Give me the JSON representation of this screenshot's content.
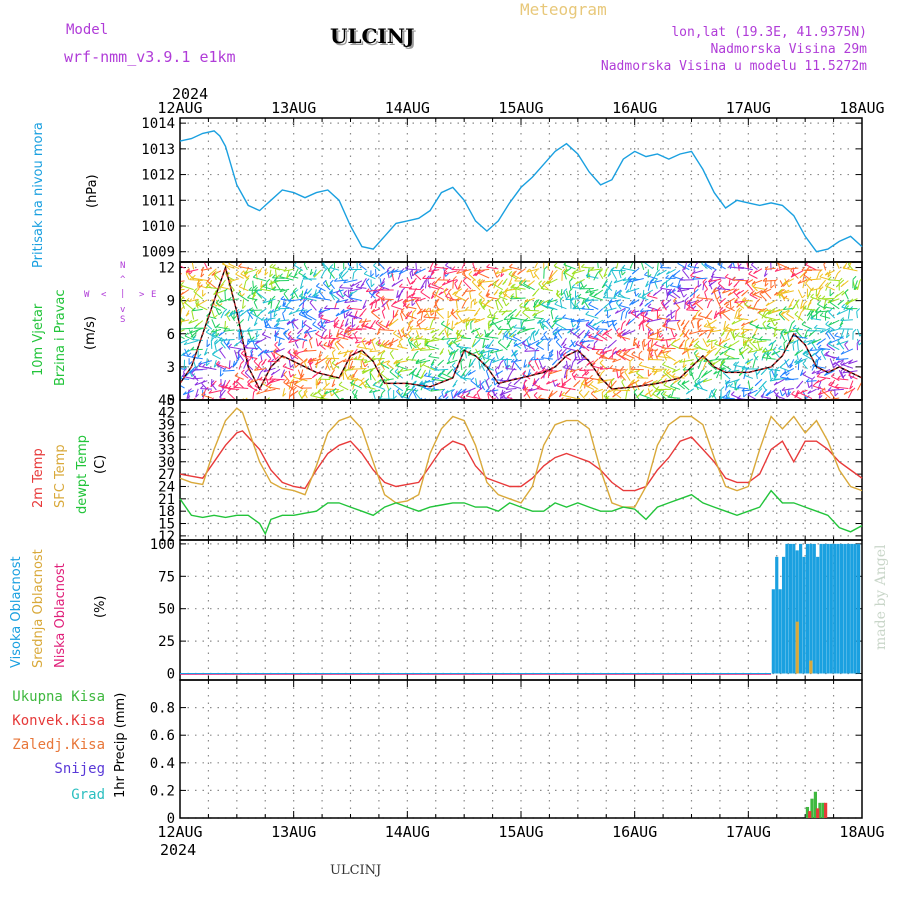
{
  "header": {
    "model_label": "Model",
    "model_name": "wrf-nmm_v3.9.1 e1km",
    "station": "ULCINJ",
    "product": "Meteogram",
    "lonlat": "lon,lat (19.3E, 41.9375N)",
    "elevation": "Nadmorska Visina 29m",
    "model_elevation": "Nadmorska Visina u modelu 11.5272m",
    "footer_station": "ULCINJ",
    "credit": "made by Angel"
  },
  "colors": {
    "pressure": "#1aa0e0",
    "temp2m": "#e83a3a",
    "sfc": "#d9a93a",
    "dewpt": "#22c43a",
    "purple": "#b03cd8",
    "total_precip": "#3fb83f",
    "conv_precip": "#e63a3a",
    "grid_precip": "#e8773a",
    "snow": "#5a3ad8",
    "hail": "#2bbfc0"
  },
  "chart_data": [
    {
      "type": "line",
      "panel": "pressure",
      "ylabel": [
        "Pritisak na nivou mora",
        "(hPa)"
      ],
      "top_year": "2024",
      "bottom_year": "2024",
      "x_ticks": [
        "12AUG",
        "13AUG",
        "14AUG",
        "15AUG",
        "16AUG",
        "17AUG",
        "18AUG"
      ],
      "xlim_days": [
        0,
        6
      ],
      "ylim": [
        1008.6,
        1014.2
      ],
      "yticks": [
        1009,
        1010,
        1011,
        1012,
        1013,
        1014
      ],
      "grid": true,
      "series": [
        {
          "x": [
            0,
            0.1,
            0.2,
            0.3,
            0.35,
            0.4,
            0.5,
            0.6,
            0.7,
            0.75,
            0.8,
            0.9,
            1.0,
            1.1,
            1.2,
            1.3,
            1.4,
            1.5,
            1.6,
            1.7,
            1.8,
            1.9,
            2.0,
            2.1,
            2.2,
            2.3,
            2.4,
            2.5,
            2.6,
            2.7,
            2.8,
            2.9,
            3.0,
            3.1,
            3.2,
            3.3,
            3.4,
            3.5,
            3.6,
            3.7,
            3.8,
            3.9,
            4.0,
            4.1,
            4.2,
            4.3,
            4.4,
            4.5,
            4.6,
            4.7,
            4.8,
            4.9,
            5.0,
            5.1,
            5.2,
            5.3,
            5.4,
            5.5,
            5.6,
            5.7,
            5.8,
            5.9,
            6.0
          ],
          "y": [
            1013.3,
            1013.4,
            1013.6,
            1013.7,
            1013.5,
            1013.1,
            1011.6,
            1010.8,
            1010.6,
            1010.8,
            1011.0,
            1011.4,
            1011.3,
            1011.1,
            1011.3,
            1011.4,
            1011.0,
            1010.0,
            1009.2,
            1009.1,
            1009.6,
            1010.1,
            1010.2,
            1010.3,
            1010.6,
            1011.3,
            1011.5,
            1011.0,
            1010.2,
            1009.8,
            1010.2,
            1010.9,
            1011.5,
            1011.9,
            1012.4,
            1012.9,
            1013.2,
            1012.8,
            1012.1,
            1011.6,
            1011.8,
            1012.6,
            1012.9,
            1012.7,
            1012.8,
            1012.6,
            1012.8,
            1012.9,
            1012.2,
            1011.3,
            1010.7,
            1011.0,
            1010.9,
            1010.8,
            1010.9,
            1010.8,
            1010.4,
            1009.6,
            1009.0,
            1009.1,
            1009.4,
            1009.6,
            1009.2
          ],
          "color": "#1aa0e0"
        }
      ]
    },
    {
      "type": "line",
      "panel": "wind",
      "ylabel": [
        "10m Vjetar",
        "Brzina i Pravac",
        "(m/s)"
      ],
      "compass": [
        "N",
        "S",
        "W",
        "E",
        "|",
        "<",
        ">",
        "^",
        "v"
      ],
      "ylim": [
        0,
        12.5
      ],
      "yticks": [
        0,
        3,
        6,
        9,
        12
      ],
      "grid": true,
      "series": [
        {
          "name": "speed",
          "x": [
            0,
            0.1,
            0.2,
            0.3,
            0.4,
            0.5,
            0.6,
            0.7,
            0.8,
            0.9,
            1.0,
            1.2,
            1.4,
            1.5,
            1.6,
            1.7,
            1.8,
            2.0,
            2.2,
            2.4,
            2.5,
            2.6,
            2.7,
            2.8,
            3.0,
            3.2,
            3.3,
            3.4,
            3.5,
            3.6,
            3.7,
            3.8,
            4.0,
            4.2,
            4.4,
            4.5,
            4.6,
            4.7,
            4.8,
            5.0,
            5.2,
            5.3,
            5.4,
            5.5,
            5.6,
            5.7,
            5.8,
            6.0
          ],
          "y": [
            1.5,
            3,
            6,
            9,
            12,
            8,
            3,
            1,
            3,
            4,
            3.5,
            2.5,
            2,
            4,
            4.5,
            3.5,
            1.5,
            1.5,
            1.2,
            2,
            4.5,
            4,
            3,
            1.5,
            2,
            2.5,
            3,
            4,
            4.5,
            3.5,
            2,
            1,
            1.2,
            1.5,
            2,
            3,
            4,
            3,
            2.5,
            2.5,
            3,
            4,
            6,
            5,
            3,
            2.5,
            3,
            2
          ],
          "color": "#e83a3a"
        }
      ]
    },
    {
      "type": "line",
      "panel": "temperature",
      "ylabel": [
        "2m Temp",
        "SFC Temp",
        "dewpt Temp",
        "(C)"
      ],
      "ylim": [
        11,
        45
      ],
      "yticks": [
        12,
        15,
        18,
        21,
        24,
        27,
        30,
        33,
        36,
        39,
        42,
        45
      ],
      "grid": true,
      "series": [
        {
          "name": "2m Temp",
          "color": "#e83a3a",
          "x": [
            0,
            0.1,
            0.2,
            0.3,
            0.4,
            0.5,
            0.55,
            0.6,
            0.7,
            0.8,
            0.9,
            1.0,
            1.1,
            1.2,
            1.3,
            1.4,
            1.5,
            1.6,
            1.7,
            1.8,
            1.9,
            2.0,
            2.1,
            2.2,
            2.3,
            2.4,
            2.5,
            2.6,
            2.7,
            2.8,
            2.9,
            3.0,
            3.1,
            3.2,
            3.3,
            3.4,
            3.5,
            3.6,
            3.7,
            3.8,
            3.9,
            4.0,
            4.1,
            4.2,
            4.3,
            4.4,
            4.5,
            4.6,
            4.7,
            4.8,
            4.9,
            5.0,
            5.1,
            5.2,
            5.3,
            5.4,
            5.5,
            5.6,
            5.7,
            5.8,
            5.9,
            6.0
          ],
          "y": [
            27,
            26.5,
            26,
            30,
            34,
            37,
            37.5,
            36,
            33,
            28,
            25,
            24,
            23.5,
            28,
            32,
            34,
            35,
            32,
            28,
            25,
            24,
            24.5,
            25,
            29,
            33,
            35,
            34,
            29,
            26,
            25,
            24,
            24,
            26,
            29,
            31,
            32,
            31,
            30,
            28,
            25,
            23,
            23,
            24,
            28,
            31,
            35,
            36,
            33,
            30,
            26,
            25,
            25,
            27,
            33,
            35,
            30,
            35,
            35,
            33,
            30,
            28,
            26
          ]
        },
        {
          "name": "SFC Temp",
          "color": "#d9a93a",
          "x": [
            0,
            0.1,
            0.2,
            0.3,
            0.4,
            0.5,
            0.55,
            0.6,
            0.7,
            0.8,
            0.9,
            1.0,
            1.1,
            1.2,
            1.3,
            1.4,
            1.5,
            1.6,
            1.7,
            1.8,
            1.9,
            2.0,
            2.1,
            2.2,
            2.3,
            2.4,
            2.5,
            2.6,
            2.7,
            2.8,
            2.9,
            3.0,
            3.1,
            3.2,
            3.3,
            3.4,
            3.5,
            3.6,
            3.7,
            3.8,
            3.9,
            4.0,
            4.1,
            4.2,
            4.3,
            4.4,
            4.5,
            4.6,
            4.7,
            4.8,
            4.9,
            5.0,
            5.1,
            5.2,
            5.3,
            5.4,
            5.5,
            5.6,
            5.7,
            5.8,
            5.9,
            6.0
          ],
          "y": [
            26,
            25,
            24.5,
            33,
            40,
            43,
            42,
            38,
            30,
            25,
            23.5,
            23,
            22,
            29,
            37,
            40,
            41,
            38,
            30,
            22,
            20,
            20.5,
            22,
            32,
            38,
            41,
            40,
            34,
            25,
            22,
            21,
            20,
            24,
            34,
            39,
            40,
            40,
            38,
            28,
            20,
            19,
            19,
            24,
            34,
            39,
            41,
            41,
            39,
            31,
            24,
            23,
            24,
            33,
            41,
            38,
            41,
            37,
            40,
            35,
            28,
            24,
            23
          ]
        },
        {
          "name": "dewpt Temp",
          "color": "#22c43a",
          "x": [
            0,
            0.1,
            0.2,
            0.3,
            0.4,
            0.5,
            0.6,
            0.7,
            0.75,
            0.8,
            0.9,
            1.0,
            1.1,
            1.2,
            1.3,
            1.4,
            1.5,
            1.6,
            1.7,
            1.8,
            1.9,
            2.0,
            2.1,
            2.2,
            2.3,
            2.4,
            2.5,
            2.6,
            2.7,
            2.8,
            2.9,
            3.0,
            3.1,
            3.2,
            3.3,
            3.4,
            3.5,
            3.6,
            3.7,
            3.8,
            3.9,
            4.0,
            4.1,
            4.2,
            4.3,
            4.4,
            4.5,
            4.6,
            4.7,
            4.8,
            4.9,
            5.0,
            5.1,
            5.2,
            5.3,
            5.4,
            5.5,
            5.6,
            5.7,
            5.8,
            5.9,
            6.0
          ],
          "y": [
            21,
            17,
            16.5,
            17,
            16.5,
            17,
            17,
            15,
            12.5,
            16,
            17,
            17,
            17.5,
            18,
            20,
            20,
            19,
            18,
            17,
            19,
            20,
            19,
            18,
            19,
            19.5,
            20,
            20,
            19,
            19,
            18,
            20,
            19,
            18,
            18,
            20,
            19,
            20,
            19,
            18,
            18,
            19,
            18.5,
            16,
            19,
            20,
            21,
            22,
            20,
            19,
            18,
            17,
            18,
            19,
            23,
            20,
            20,
            19,
            18,
            17,
            14,
            13,
            14.5
          ]
        }
      ]
    },
    {
      "type": "bar",
      "panel": "cloud",
      "ylabel": [
        "Visoka Oblacnost",
        "Srednja Oblacnost",
        "Niska Oblacnost",
        "(%)"
      ],
      "ylim": [
        -5,
        103
      ],
      "yticks": [
        0,
        25,
        50,
        75,
        100
      ],
      "grid": true,
      "series": [
        {
          "name": "Visoka Oblacnost",
          "color": "#1aa0e0",
          "x": [
            5.22,
            5.25,
            5.28,
            5.31,
            5.34,
            5.37,
            5.4,
            5.43,
            5.46,
            5.49,
            5.52,
            5.55,
            5.58,
            5.61,
            5.64,
            5.67,
            5.7,
            5.73,
            5.76,
            5.79,
            5.82,
            5.85,
            5.88,
            5.91,
            5.94,
            5.97
          ],
          "y": [
            65,
            90,
            65,
            90,
            100,
            100,
            100,
            95,
            100,
            90,
            100,
            100,
            100,
            90,
            100,
            100,
            100,
            100,
            100,
            100,
            100,
            100,
            100,
            100,
            100,
            100
          ]
        },
        {
          "name": "Srednja Oblacnost",
          "color": "#d9a93a",
          "x": [
            5.43,
            5.55
          ],
          "y": [
            40,
            10
          ]
        },
        {
          "name": "Niska Oblacnost",
          "color": "#e0207a",
          "x": [],
          "y": []
        }
      ]
    },
    {
      "type": "bar",
      "panel": "precip",
      "ylabel": [
        "1hr Precip (mm)"
      ],
      "legend": [
        "Ukupna Kisa",
        "Konvek.Kisa",
        "Zaledj.Kisa",
        "Snijeg",
        "Grad"
      ],
      "ylim": [
        0,
        1
      ],
      "yticks": [
        0,
        0.2,
        0.4,
        0.6,
        0.8
      ],
      "grid": true,
      "series": [
        {
          "name": "Ukupna Kisa",
          "color": "#3fb83f",
          "x": [
            5.52,
            5.56,
            5.59,
            5.63,
            5.66
          ],
          "y": [
            0.08,
            0.14,
            0.19,
            0.11,
            0.11
          ]
        },
        {
          "name": "Konvek.Kisa",
          "color": "#e63a3a",
          "x": [
            5.54,
            5.61,
            5.68
          ],
          "y": [
            0.05,
            0.07,
            0.11
          ]
        }
      ]
    }
  ]
}
